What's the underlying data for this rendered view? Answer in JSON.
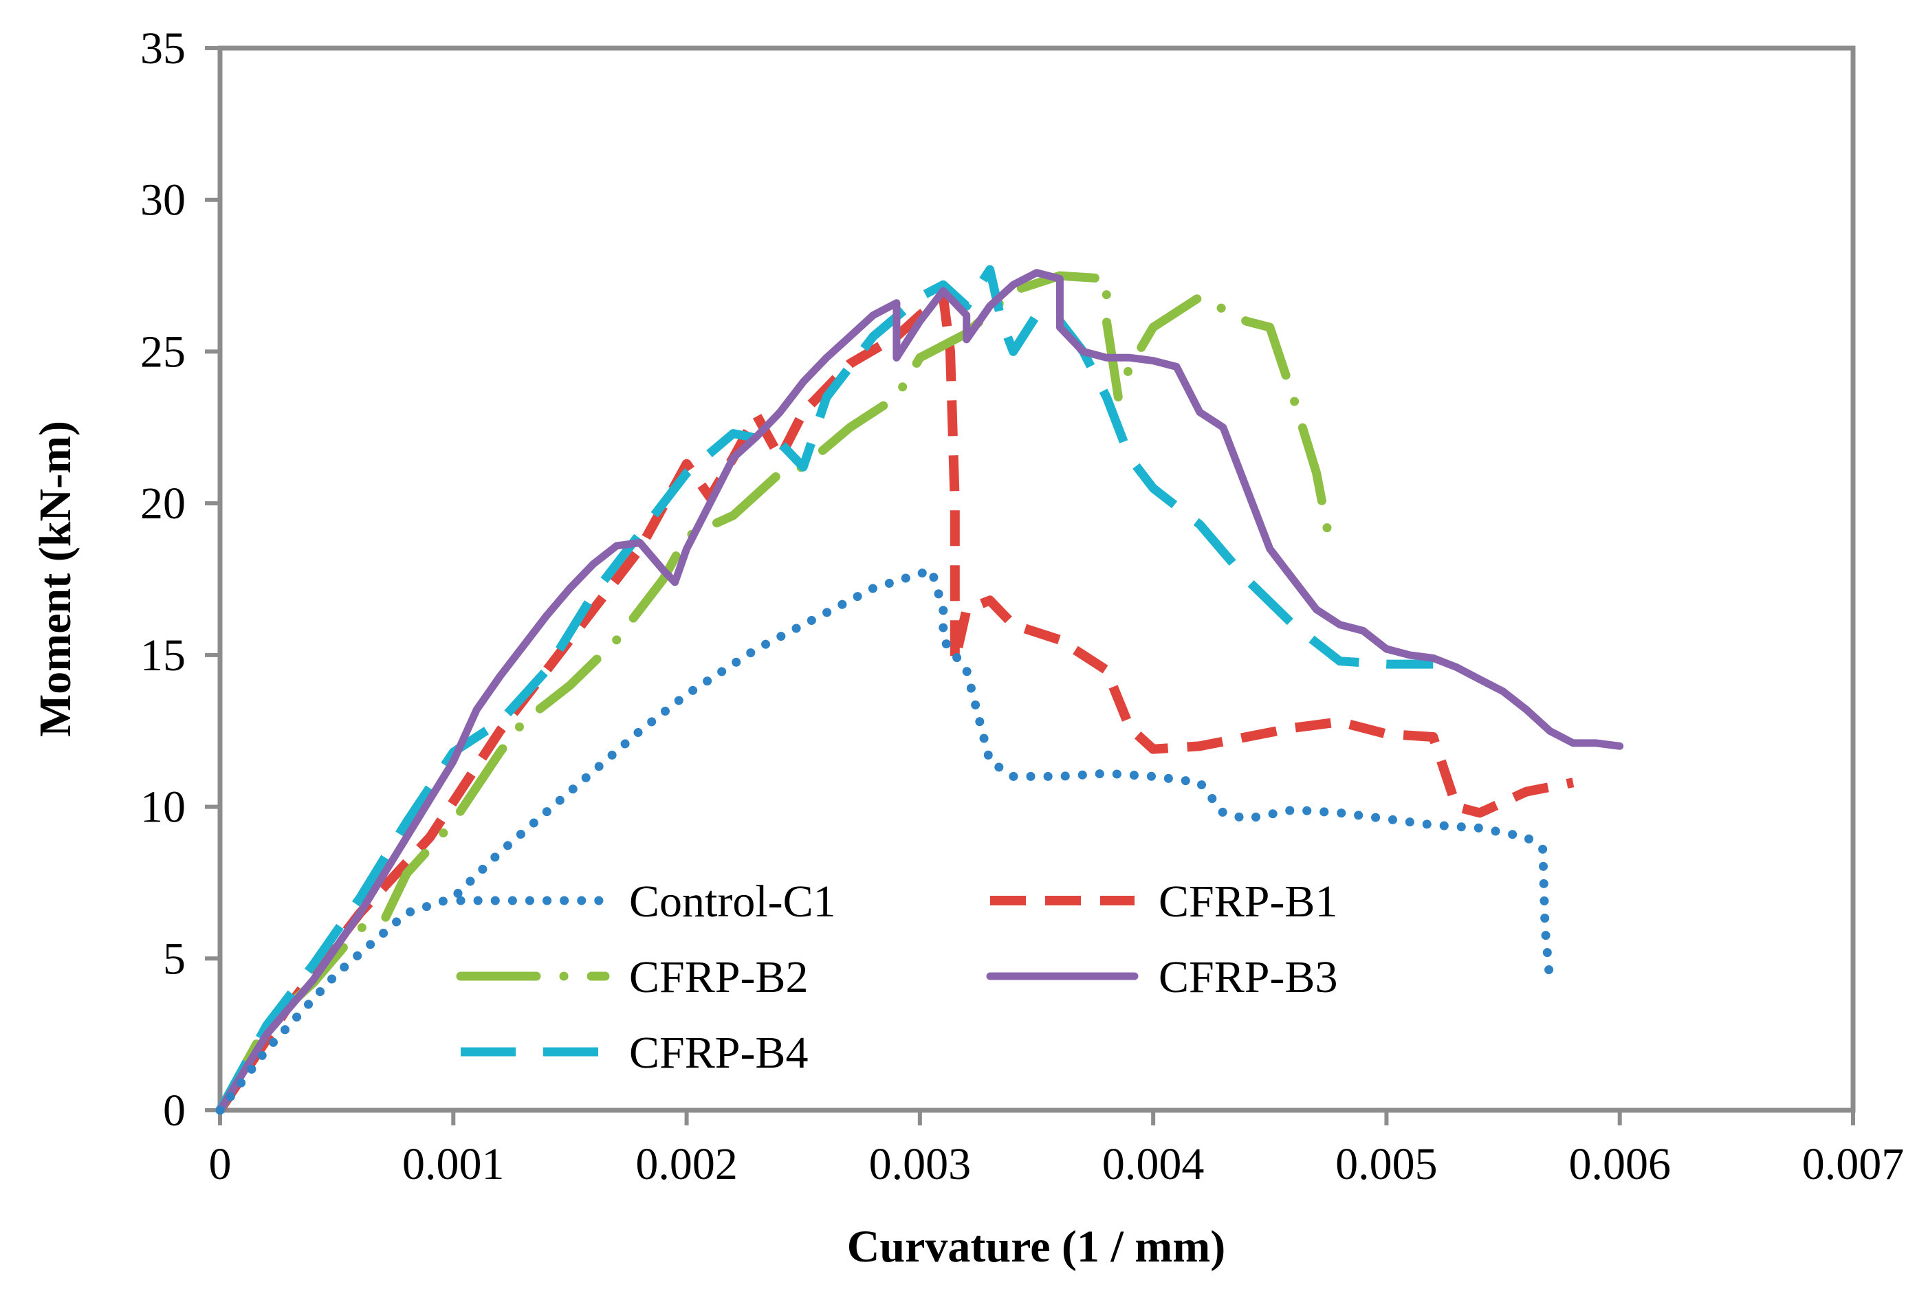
{
  "chart_data": {
    "type": "line",
    "xlabel": "Curvature (1 / mm)",
    "ylabel": "Moment  (kN-m)",
    "xlim": [
      0,
      0.007
    ],
    "ylim": [
      0,
      35
    ],
    "xticks": [
      "0",
      "0.001",
      "0.002",
      "0.003",
      "0.004",
      "0.005",
      "0.006",
      "0.007"
    ],
    "yticks": [
      "0",
      "5",
      "10",
      "15",
      "20",
      "25",
      "30",
      "35"
    ],
    "grid": false,
    "legend_position": "lower-center inside plot, two columns",
    "series": [
      {
        "name": "Control-C1",
        "color": "#2E83C6",
        "style": "dotted",
        "x": [
          0,
          0.0002,
          0.0005,
          0.0008,
          0.001,
          0.0012,
          0.0015,
          0.0018,
          0.002,
          0.0023,
          0.0026,
          0.0028,
          0.00305,
          0.0031,
          0.0031,
          0.0032,
          0.0033,
          0.0034,
          0.0036,
          0.0038,
          0.004,
          0.0042,
          0.0043,
          0.0044,
          0.0046,
          0.0048,
          0.005,
          0.0052,
          0.0054,
          0.0056,
          0.00567,
          0.00568,
          0.0057
        ],
        "y": [
          0,
          2.0,
          4.5,
          6.5,
          7.0,
          8.5,
          10.5,
          12.5,
          13.7,
          15.2,
          16.4,
          17.2,
          17.8,
          16.5,
          15.5,
          14.5,
          11.5,
          11.0,
          11.0,
          11.1,
          11.0,
          10.8,
          9.8,
          9.6,
          9.9,
          9.8,
          9.6,
          9.4,
          9.3,
          9.0,
          8.6,
          6.0,
          4.3
        ]
      },
      {
        "name": "CFRP-B1",
        "color": "#E0433C",
        "style": "dashed",
        "x": [
          0,
          0.0003,
          0.0006,
          0.0009,
          0.0012,
          0.0015,
          0.0018,
          0.002,
          0.0021,
          0.0022,
          0.0023,
          0.0024,
          0.0025,
          0.0027,
          0.0029,
          0.003,
          0.0031,
          0.00313,
          0.00315,
          0.00315,
          0.0032,
          0.0033,
          0.0034,
          0.0036,
          0.0038,
          0.0039,
          0.004,
          0.0042,
          0.0044,
          0.0046,
          0.0048,
          0.005,
          0.0052,
          0.0053,
          0.0054,
          0.0056,
          0.0058
        ],
        "y": [
          0,
          3.5,
          6.5,
          9.0,
          12.5,
          15.5,
          18.5,
          21.3,
          20.2,
          21.5,
          22.9,
          21.5,
          23.0,
          24.6,
          25.5,
          26.2,
          26.8,
          25.0,
          20.0,
          14.8,
          16.5,
          16.8,
          16.0,
          15.5,
          14.5,
          12.6,
          11.9,
          12.0,
          12.3,
          12.6,
          12.8,
          12.4,
          12.3,
          10.0,
          9.8,
          10.5,
          10.8
        ]
      },
      {
        "name": "CFRP-B2",
        "color": "#8DBF43",
        "style": "dash-dot",
        "x": [
          0,
          0.0002,
          0.0004,
          0.0006,
          0.0007,
          0.0008,
          0.001,
          0.0012,
          0.0013,
          0.0015,
          0.0017,
          0.0019,
          0.002,
          0.0022,
          0.0024,
          0.0025,
          0.0027,
          0.0029,
          0.003,
          0.0032,
          0.0034,
          0.0036,
          0.0038,
          0.0038,
          0.00385,
          0.0039,
          0.004,
          0.0042,
          0.0044,
          0.0045,
          0.0046,
          0.0047,
          0.00475
        ],
        "y": [
          0,
          2.8,
          4.2,
          6.0,
          6.2,
          7.8,
          9.5,
          11.8,
          12.8,
          14.0,
          15.5,
          17.5,
          18.9,
          19.6,
          21.0,
          21.2,
          22.5,
          23.5,
          24.8,
          25.6,
          27.0,
          27.5,
          27.4,
          26.0,
          23.5,
          24.5,
          25.8,
          26.8,
          26.0,
          25.8,
          23.5,
          21.0,
          19.0
        ]
      },
      {
        "name": "CFRP-B3",
        "color": "#8A63AD",
        "style": "solid",
        "x": [
          0,
          0.0002,
          0.0004,
          0.0006,
          0.0008,
          0.001,
          0.0011,
          0.0012,
          0.0013,
          0.0014,
          0.0015,
          0.0016,
          0.0017,
          0.0018,
          0.0019,
          0.00195,
          0.002,
          0.0021,
          0.0022,
          0.0023,
          0.0024,
          0.0025,
          0.0026,
          0.0027,
          0.0028,
          0.0029,
          0.0029,
          0.003,
          0.0031,
          0.0032,
          0.0032,
          0.0033,
          0.0034,
          0.0035,
          0.0036,
          0.0036,
          0.0037,
          0.0038,
          0.0039,
          0.004,
          0.0041,
          0.0042,
          0.0043,
          0.0044,
          0.0045,
          0.0046,
          0.0047,
          0.0048,
          0.0049,
          0.005,
          0.0051,
          0.0052,
          0.0053,
          0.0054,
          0.0055,
          0.0056,
          0.0057,
          0.0058,
          0.0059,
          0.006
        ],
        "y": [
          0,
          2.5,
          4.3,
          6.5,
          9.0,
          11.5,
          13.2,
          14.3,
          15.3,
          16.3,
          17.2,
          18.0,
          18.6,
          18.7,
          17.8,
          17.4,
          18.5,
          20.0,
          21.5,
          22.2,
          23.0,
          24.0,
          24.8,
          25.5,
          26.2,
          26.6,
          24.8,
          26.0,
          27.0,
          26.2,
          25.4,
          26.5,
          27.2,
          27.6,
          27.4,
          25.8,
          25.0,
          24.8,
          24.8,
          24.7,
          24.5,
          23.0,
          22.5,
          20.5,
          18.5,
          17.5,
          16.5,
          16.0,
          15.8,
          15.2,
          15.0,
          14.9,
          14.6,
          14.2,
          13.8,
          13.2,
          12.5,
          12.1,
          12.1,
          12.0
        ]
      },
      {
        "name": "CFRP-B4",
        "color": "#1BB3CF",
        "style": "long-dash",
        "x": [
          0,
          0.0002,
          0.0004,
          0.0006,
          0.0008,
          0.001,
          0.0012,
          0.0014,
          0.0016,
          0.0018,
          0.002,
          0.0022,
          0.0024,
          0.0025,
          0.0026,
          0.0028,
          0.003,
          0.0031,
          0.0032,
          0.0033,
          0.00335,
          0.0034,
          0.0035,
          0.0036,
          0.0037,
          0.0038,
          0.0039,
          0.004,
          0.0042,
          0.0044,
          0.0046,
          0.0048,
          0.005,
          0.0052
        ],
        "y": [
          0,
          2.8,
          4.8,
          7.0,
          9.5,
          11.8,
          12.8,
          14.5,
          17.0,
          19.0,
          21.0,
          22.3,
          22.0,
          21.2,
          23.5,
          25.5,
          26.8,
          27.2,
          26.5,
          27.7,
          26.0,
          25.0,
          26.2,
          26.0,
          25.0,
          23.5,
          21.5,
          20.5,
          19.3,
          17.5,
          16.0,
          14.8,
          14.7,
          14.7
        ]
      }
    ]
  }
}
